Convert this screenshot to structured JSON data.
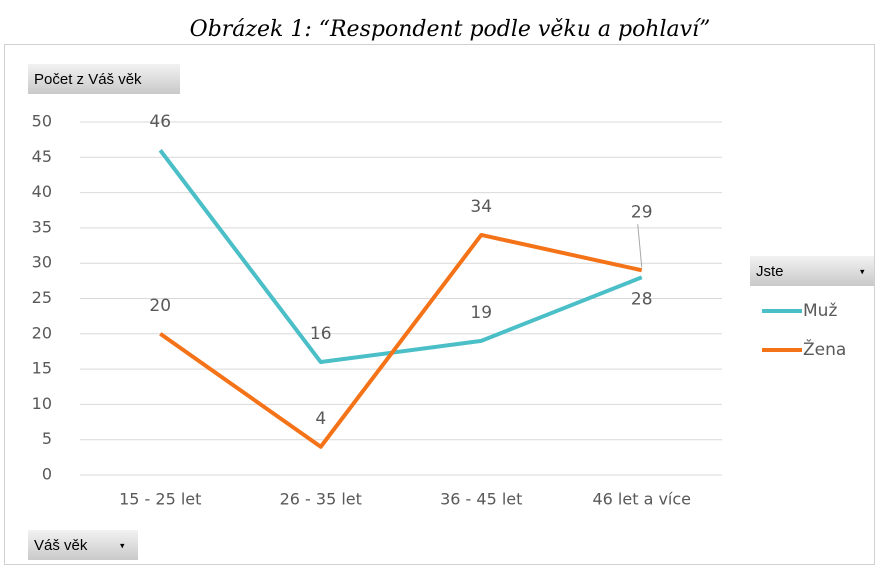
{
  "chart_data": {
    "type": "line",
    "title": "Obrázek 1: “Respondent podle věku a pohlaví”",
    "value_field": "Počet z Váš věk",
    "legend_field": "Jste",
    "axis_field": "Váš věk",
    "categories": [
      "15 - 25 let",
      "26 - 35 let",
      "36 - 45 let",
      "46 let a více"
    ],
    "series": [
      {
        "name": "Muž",
        "color": "#4bbfc7",
        "values": [
          46,
          16,
          19,
          28
        ]
      },
      {
        "name": "Žena",
        "color": "#f47318",
        "values": [
          20,
          4,
          34,
          29
        ]
      }
    ],
    "ylim": [
      0,
      50
    ],
    "yticks": [
      0,
      5,
      10,
      15,
      20,
      25,
      30,
      35,
      40,
      45,
      50
    ],
    "grid": true,
    "legend": "right"
  }
}
